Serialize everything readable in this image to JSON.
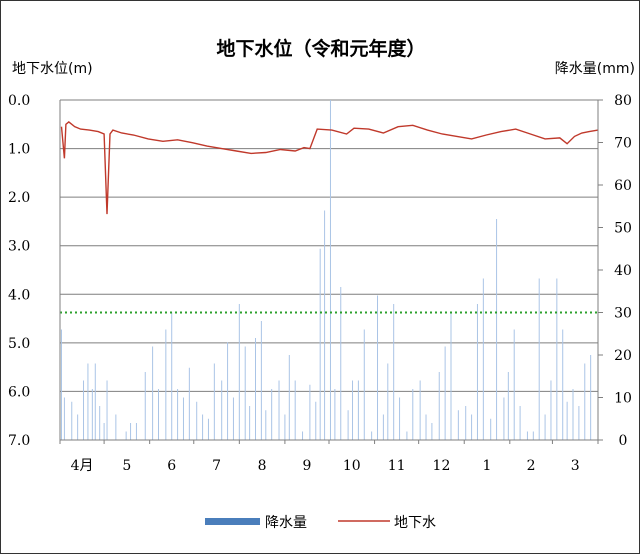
{
  "chart_data": {
    "type": "line",
    "title": "地下水位（令和元年度）",
    "ylabel_left": "地下水位(m)",
    "ylabel_right": "降水量(mm)",
    "x_ticks": [
      "4月",
      "5",
      "6",
      "7",
      "8",
      "9",
      "10",
      "11",
      "12",
      "1",
      "2",
      "3"
    ],
    "y_left_ticks": [
      "0.0",
      "1.0",
      "2.0",
      "3.0",
      "4.0",
      "5.0",
      "6.0",
      "7.0"
    ],
    "y_left_range": [
      0,
      7
    ],
    "y_left_inverted": true,
    "y_right_ticks": [
      "0",
      "10",
      "20",
      "30",
      "40",
      "50",
      "60",
      "70",
      "80"
    ],
    "y_right_range": [
      0,
      80
    ],
    "grid": true,
    "reference_line": {
      "axis": "right",
      "value": 30,
      "color": "#2ca02c",
      "style": "dotted"
    },
    "legend_position": "bottom",
    "series": [
      {
        "name": "降水量",
        "type": "bar",
        "axis": "right",
        "color": "#4a7ebb",
        "x_day": [
          1,
          3,
          8,
          12,
          16,
          19,
          22,
          24,
          27,
          30,
          32,
          38,
          45,
          48,
          52,
          58,
          63,
          67,
          72,
          76,
          80,
          84,
          88,
          93,
          97,
          101,
          105,
          110,
          114,
          118,
          122,
          126,
          129,
          133,
          137,
          140,
          144,
          149,
          153,
          156,
          160,
          165,
          170,
          174,
          177,
          180,
          184,
          187,
          191,
          196,
          199,
          203,
          207,
          212,
          216,
          220,
          223,
          227,
          231,
          236,
          240,
          245,
          249,
          253,
          258,
          262,
          266,
          271,
          276,
          280,
          284,
          288,
          293,
          297,
          302,
          305,
          309,
          313,
          318,
          322,
          326,
          330,
          334,
          338,
          342,
          345,
          349,
          353,
          357,
          361
        ],
        "values": [
          26,
          10,
          9,
          6,
          14,
          18,
          12,
          18,
          8,
          4,
          14,
          6,
          2,
          4,
          4,
          16,
          22,
          12,
          26,
          30,
          12,
          10,
          17,
          9,
          6,
          5,
          18,
          14,
          23,
          10,
          32,
          22,
          8,
          24,
          28,
          7,
          12,
          14,
          6,
          20,
          14,
          2,
          13,
          9,
          45,
          54,
          80,
          12,
          36,
          7,
          14,
          14,
          26,
          2,
          34,
          6,
          18,
          32,
          10,
          2,
          12,
          14,
          6,
          4,
          16,
          22,
          30,
          7,
          8,
          6,
          32,
          38,
          5,
          52,
          10,
          16,
          26,
          8,
          2,
          2,
          38,
          6,
          14,
          38,
          26,
          9,
          12,
          8,
          18,
          20
        ]
      },
      {
        "name": "地下水",
        "type": "line",
        "axis": "left",
        "color": "#c0392b",
        "x_day": [
          1,
          3,
          4,
          6,
          10,
          14,
          20,
          26,
          30,
          32,
          34,
          36,
          42,
          50,
          60,
          70,
          80,
          90,
          100,
          110,
          120,
          130,
          140,
          150,
          160,
          166,
          170,
          175,
          185,
          195,
          200,
          210,
          220,
          230,
          240,
          250,
          260,
          270,
          280,
          290,
          300,
          310,
          320,
          330,
          340,
          345,
          350,
          355,
          360,
          366
        ],
        "values": [
          0.55,
          1.2,
          0.5,
          0.45,
          0.55,
          0.6,
          0.62,
          0.65,
          0.7,
          2.35,
          0.7,
          0.62,
          0.68,
          0.72,
          0.8,
          0.85,
          0.82,
          0.88,
          0.95,
          1.0,
          1.05,
          1.1,
          1.08,
          1.02,
          1.05,
          0.98,
          1.0,
          0.6,
          0.62,
          0.7,
          0.58,
          0.6,
          0.68,
          0.55,
          0.52,
          0.62,
          0.7,
          0.75,
          0.8,
          0.72,
          0.65,
          0.6,
          0.7,
          0.8,
          0.78,
          0.9,
          0.75,
          0.68,
          0.65,
          0.62
        ]
      }
    ]
  }
}
